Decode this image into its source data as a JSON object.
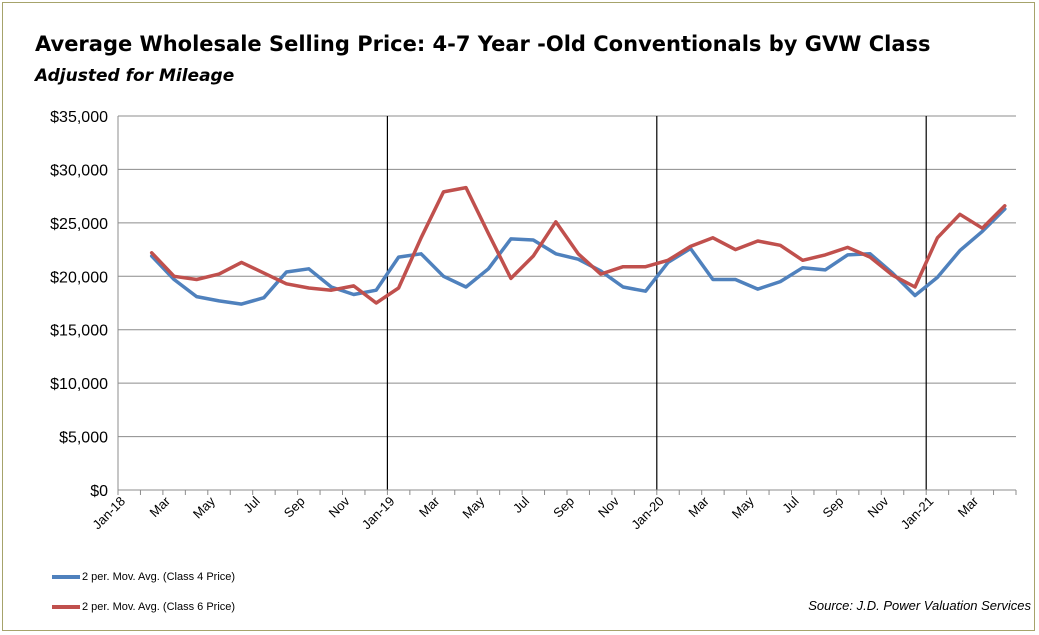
{
  "chart_data": {
    "type": "line",
    "title": "Average Wholesale Selling Price: 4-7 Year -Old Conventionals by GVW Class",
    "subtitle": "Adjusted for Mileage",
    "xlabel": "",
    "ylabel": "",
    "ylim": [
      0,
      35000
    ],
    "y_ticks": [
      "$0",
      "$5,000",
      "$10,000",
      "$15,000",
      "$20,000",
      "$25,000",
      "$30,000",
      "$35,000"
    ],
    "y_tick_values": [
      0,
      5000,
      10000,
      15000,
      20000,
      25000,
      30000,
      35000
    ],
    "x_tick_labels": [
      "Jan-18",
      "Mar",
      "May",
      "Jul",
      "Sep",
      "Nov",
      "Jan-19",
      "Mar",
      "May",
      "Jul",
      "Sep",
      "Nov",
      "Jan-20",
      "Mar",
      "May",
      "Jul",
      "Sep",
      "Nov",
      "Jan-21",
      "Mar"
    ],
    "categories": [
      "Jan-18",
      "Feb-18",
      "Mar-18",
      "Apr-18",
      "May-18",
      "Jun-18",
      "Jul-18",
      "Aug-18",
      "Sep-18",
      "Oct-18",
      "Nov-18",
      "Dec-18",
      "Jan-19",
      "Feb-19",
      "Mar-19",
      "Apr-19",
      "May-19",
      "Jun-19",
      "Jul-19",
      "Aug-19",
      "Sep-19",
      "Oct-19",
      "Nov-19",
      "Dec-19",
      "Jan-20",
      "Feb-20",
      "Mar-20",
      "Apr-20",
      "May-20",
      "Jun-20",
      "Jul-20",
      "Aug-20",
      "Sep-20",
      "Oct-20",
      "Nov-20",
      "Dec-20",
      "Jan-21",
      "Feb-21",
      "Mar-21",
      "Apr-21"
    ],
    "year_dividers": [
      "Jan-19",
      "Jan-20",
      "Jan-21"
    ],
    "grid": true,
    "legend_placement": "bottom-left",
    "series": [
      {
        "name": "2 per. Mov. Avg. (Class 4 Price)",
        "color": "#4f81bd",
        "values": [
          null,
          21900,
          19700,
          18100,
          17700,
          17400,
          18000,
          20400,
          20700,
          19000,
          18300,
          18700,
          21800,
          22100,
          20000,
          19000,
          20700,
          23500,
          23400,
          22100,
          21600,
          20500,
          19000,
          18600,
          21300,
          22600,
          19700,
          19700,
          18800,
          19500,
          20800,
          20600,
          22000,
          22100,
          20300,
          18200,
          19900,
          22400,
          24200,
          26300
        ]
      },
      {
        "name": "2 per. Mov. Avg. (Class 6 Price)",
        "color": "#c0504d",
        "values": [
          null,
          22200,
          20000,
          19700,
          20200,
          21300,
          20300,
          19300,
          18900,
          18700,
          19100,
          17500,
          18900,
          23600,
          27900,
          28300,
          24000,
          19800,
          21900,
          25100,
          22100,
          20200,
          20900,
          20900,
          21500,
          22800,
          23600,
          22500,
          23300,
          22900,
          21500,
          22000,
          22700,
          21800,
          20100,
          19000,
          23600,
          25800,
          24500,
          26600
        ]
      }
    ],
    "source": "Source: J.D. Power Valuation Services"
  }
}
